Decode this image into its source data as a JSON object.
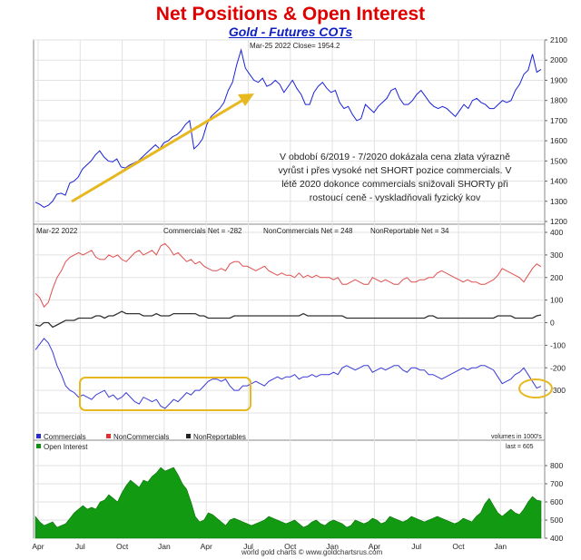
{
  "chart_data": {
    "type": "line",
    "title": "Net Positions & Open Interest",
    "subtitle": "Gold - Futures COTs",
    "footer": "world gold charts © www.goldchartsrus.com",
    "x_ticks": [
      "Apr",
      "Jul",
      "Oct",
      "Jan",
      "Apr",
      "Jul",
      "Oct",
      "Jan",
      "Apr",
      "Jul",
      "Oct",
      "Jan"
    ],
    "colors": {
      "title": "#e00000",
      "subtitle": "#1020c0",
      "price": "#1a22d6",
      "commercials": "#3a3ad8",
      "noncommercials": "#e05050",
      "nonreportables": "#222222",
      "oi": "#109010",
      "highlight": "#e8b820"
    },
    "panels": [
      {
        "name": "price",
        "header": "Mar-25  2022   Close= 1954.2",
        "ylim": [
          1200,
          2100
        ],
        "yticks": [
          1200,
          1300,
          1400,
          1500,
          1600,
          1700,
          1800,
          1900,
          2000,
          2100
        ],
        "series": [
          {
            "values": [
              1295,
              1285,
              1270,
              1280,
              1300,
              1335,
              1340,
              1330,
              1390,
              1400,
              1420,
              1460,
              1480,
              1500,
              1530,
              1550,
              1520,
              1500,
              1495,
              1510,
              1470,
              1465,
              1480,
              1490,
              1500,
              1520,
              1540,
              1560,
              1580,
              1560,
              1590,
              1600,
              1620,
              1630,
              1650,
              1680,
              1700,
              1560,
              1580,
              1610,
              1680,
              1720,
              1740,
              1760,
              1790,
              1850,
              1890,
              1980,
              2050,
              1960,
              1930,
              1900,
              1890,
              1910,
              1870,
              1880,
              1900,
              1880,
              1840,
              1870,
              1900,
              1860,
              1830,
              1780,
              1780,
              1840,
              1870,
              1890,
              1860,
              1840,
              1850,
              1790,
              1760,
              1770,
              1730,
              1700,
              1710,
              1780,
              1760,
              1740,
              1770,
              1790,
              1810,
              1850,
              1860,
              1810,
              1780,
              1780,
              1800,
              1830,
              1850,
              1820,
              1790,
              1770,
              1760,
              1770,
              1760,
              1740,
              1720,
              1750,
              1780,
              1760,
              1800,
              1810,
              1790,
              1780,
              1760,
              1760,
              1780,
              1800,
              1790,
              1800,
              1850,
              1880,
              1930,
              1950,
              2030,
              1940,
              1954
            ]
          }
        ]
      },
      {
        "name": "net positions",
        "header_left": "Mar-22  2022",
        "labels": [
          "Commercials Net = -282",
          "NonCommercials Net = 248",
          "NonReportable Net = 34"
        ],
        "ylim": [
          -400,
          400
        ],
        "yticks": [
          400,
          300,
          200,
          100,
          0,
          -100,
          -200,
          -300,
          -400
        ],
        "yticklabels": [
          "400",
          "300",
          "200",
          "100",
          "0",
          "-100",
          "-200",
          "-300",
          ""
        ],
        "units_note": "volumes in 1000's",
        "series": [
          {
            "name": "Commercials",
            "values": [
              -120,
              -95,
              -70,
              -90,
              -130,
              -190,
              -230,
              -280,
              -300,
              -310,
              -330,
              -320,
              -330,
              -340,
              -320,
              -310,
              -300,
              -330,
              -320,
              -340,
              -330,
              -310,
              -330,
              -350,
              -360,
              -330,
              -340,
              -350,
              -340,
              -370,
              -380,
              -360,
              -340,
              -350,
              -330,
              -310,
              -320,
              -300,
              -300,
              -280,
              -260,
              -250,
              -250,
              -260,
              -250,
              -280,
              -300,
              -300,
              -280,
              -280,
              -270,
              -260,
              -270,
              -280,
              -260,
              -250,
              -240,
              -250,
              -240,
              -240,
              -230,
              -250,
              -240,
              -240,
              -230,
              -240,
              -230,
              -230,
              -230,
              -220,
              -230,
              -200,
              -190,
              -200,
              -210,
              -200,
              -190,
              -190,
              -220,
              -210,
              -200,
              -210,
              -200,
              -190,
              -190,
              -210,
              -220,
              -200,
              -200,
              -210,
              -210,
              -230,
              -230,
              -240,
              -250,
              -240,
              -230,
              -220,
              -210,
              -200,
              -210,
              -200,
              -200,
              -190,
              -190,
              -200,
              -210,
              -240,
              -270,
              -260,
              -250,
              -230,
              -220,
              -200,
              -230,
              -260,
              -290,
              -282
            ]
          },
          {
            "name": "NonCommercials",
            "values": [
              130,
              110,
              70,
              90,
              150,
              200,
              230,
              270,
              290,
              300,
              310,
              300,
              310,
              320,
              290,
              280,
              280,
              300,
              290,
              300,
              280,
              270,
              290,
              310,
              320,
              300,
              310,
              320,
              300,
              340,
              350,
              330,
              300,
              310,
              290,
              270,
              280,
              260,
              270,
              250,
              240,
              230,
              230,
              240,
              230,
              260,
              270,
              270,
              250,
              250,
              240,
              230,
              240,
              250,
              230,
              220,
              210,
              220,
              210,
              210,
              200,
              220,
              200,
              210,
              200,
              210,
              200,
              200,
              200,
              190,
              200,
              170,
              170,
              180,
              190,
              180,
              170,
              170,
              200,
              190,
              180,
              190,
              180,
              170,
              170,
              190,
              200,
              180,
              180,
              190,
              190,
              200,
              200,
              220,
              230,
              220,
              210,
              200,
              190,
              180,
              190,
              180,
              180,
              170,
              170,
              180,
              190,
              210,
              240,
              230,
              220,
              210,
              200,
              180,
              210,
              240,
              260,
              248
            ]
          },
          {
            "name": "NonReportables",
            "values": [
              -10,
              -15,
              0,
              0,
              -20,
              -10,
              0,
              10,
              10,
              10,
              20,
              20,
              20,
              20,
              30,
              30,
              20,
              30,
              30,
              40,
              50,
              40,
              40,
              40,
              40,
              30,
              30,
              30,
              40,
              30,
              30,
              30,
              40,
              40,
              40,
              40,
              40,
              40,
              30,
              30,
              20,
              20,
              20,
              20,
              20,
              20,
              30,
              30,
              30,
              30,
              30,
              30,
              30,
              30,
              30,
              30,
              30,
              30,
              30,
              30,
              30,
              30,
              40,
              30,
              30,
              30,
              30,
              30,
              30,
              30,
              30,
              30,
              20,
              20,
              20,
              20,
              20,
              20,
              20,
              20,
              20,
              20,
              20,
              20,
              20,
              20,
              20,
              20,
              20,
              20,
              20,
              30,
              30,
              20,
              20,
              20,
              20,
              20,
              20,
              20,
              20,
              20,
              20,
              20,
              20,
              20,
              20,
              30,
              30,
              30,
              30,
              20,
              20,
              20,
              20,
              20,
              30,
              34
            ]
          }
        ]
      },
      {
        "name": "open interest",
        "header": "Open Interest",
        "last_label": "last = 605",
        "ylim": [
          400,
          850
        ],
        "yticks": [
          400,
          500,
          600,
          700,
          800
        ],
        "series": [
          {
            "name": "Open Interest",
            "values": [
              520,
              490,
              470,
              480,
              490,
              460,
              470,
              480,
              510,
              540,
              560,
              580,
              560,
              570,
              560,
              600,
              610,
              640,
              620,
              600,
              650,
              690,
              720,
              700,
              680,
              720,
              710,
              740,
              760,
              790,
              770,
              780,
              790,
              750,
              700,
              670,
              600,
              520,
              490,
              500,
              540,
              530,
              510,
              490,
              470,
              500,
              510,
              500,
              490,
              480,
              470,
              480,
              490,
              500,
              520,
              510,
              500,
              490,
              480,
              490,
              500,
              480,
              460,
              470,
              490,
              500,
              480,
              470,
              490,
              500,
              490,
              480,
              460,
              470,
              500,
              490,
              480,
              490,
              510,
              500,
              480,
              490,
              520,
              510,
              500,
              490,
              500,
              520,
              510,
              500,
              490,
              500,
              510,
              520,
              510,
              500,
              490,
              480,
              490,
              510,
              500,
              490,
              520,
              540,
              590,
              620,
              580,
              540,
              520,
              540,
              560,
              540,
              530,
              560,
              600,
              630,
              610,
              605
            ]
          }
        ]
      }
    ],
    "legend": [
      {
        "label": "Commercials",
        "color": "#2b2bd0"
      },
      {
        "label": "NonCommercials",
        "color": "#e03030"
      },
      {
        "label": "NonReportables",
        "color": "#222222"
      }
    ],
    "annotation_text": "V období 6/2019 - 7/2020 dokázala cena zlata výrazně vyrůst i přes vysoké net SHORT pozice commercials. V létě 2020 dokonce commercials snižovali SHORTy při rostoucí ceně - vyskladňovali fyzický kov"
  }
}
